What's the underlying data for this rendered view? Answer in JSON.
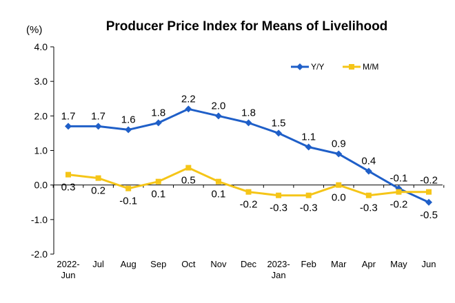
{
  "chart_data": {
    "type": "line",
    "title": "Producer Price Index for Means of Livelihood",
    "unit": "(%)",
    "categories": [
      [
        "2022-",
        "Jun"
      ],
      [
        "Jul"
      ],
      [
        "Aug"
      ],
      [
        "Sep"
      ],
      [
        "Oct"
      ],
      [
        "Nov"
      ],
      [
        "Dec"
      ],
      [
        "2023-",
        "Jan"
      ],
      [
        "Feb"
      ],
      [
        "Mar"
      ],
      [
        "Apr"
      ],
      [
        "May"
      ],
      [
        "Jun"
      ]
    ],
    "ylim": [
      -2.0,
      4.0
    ],
    "yticks": [
      "4.0",
      "3.0",
      "2.0",
      "1.0",
      "0.0",
      "-1.0",
      "-2.0"
    ],
    "ytick_values": [
      4,
      3,
      2,
      1,
      0,
      -1,
      -2
    ],
    "grid": false,
    "legend_position": "top-right",
    "series": [
      {
        "name": "Y/Y",
        "color": "#1F5FC8",
        "marker": "diamond",
        "values": [
          1.7,
          1.7,
          1.6,
          1.8,
          2.2,
          2.0,
          1.8,
          1.5,
          1.1,
          0.9,
          0.4,
          -0.1,
          -0.5
        ],
        "labels": [
          "1.7",
          "1.7",
          "1.6",
          "1.8",
          "2.2",
          "2.0",
          "1.8",
          "1.5",
          "1.1",
          "0.9",
          "0.4",
          "-0.1",
          "-0.5"
        ]
      },
      {
        "name": "M/M",
        "color": "#F5C518",
        "marker": "square",
        "values": [
          0.3,
          0.2,
          -0.1,
          0.1,
          0.5,
          0.1,
          -0.2,
          -0.3,
          -0.3,
          0.0,
          -0.3,
          -0.2,
          -0.2
        ],
        "labels": [
          "0.3",
          "0.2",
          "-0.1",
          "0.1",
          "0.5",
          "0.1",
          "-0.2",
          "-0.3",
          "-0.3",
          "0.0",
          "-0.3",
          "-0.2",
          "-0.2"
        ]
      }
    ]
  }
}
